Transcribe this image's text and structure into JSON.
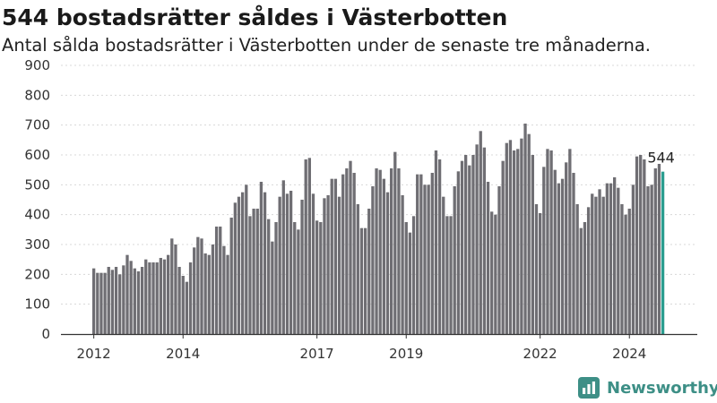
{
  "title": "544 bostadsrätter såldes i Västerbotten",
  "subtitle": "Antal sålda bostadsrätter i Västerbotten under de senaste tre månaderna.",
  "brand": {
    "name": "Newsworthy",
    "icon": "newsworthy-logo-icon"
  },
  "colors": {
    "bar": "#6f6e73",
    "highlight": "#2a9d8f",
    "axis": "#333333",
    "grid": "#d8d8d8",
    "brand": "#3d8f86"
  },
  "chart_data": {
    "type": "bar",
    "ylim": [
      0,
      900
    ],
    "yticks": [
      0,
      100,
      200,
      300,
      400,
      500,
      600,
      700,
      800,
      900
    ],
    "xticks": [
      {
        "label": "2012",
        "index": 0
      },
      {
        "label": "2014",
        "index": 24
      },
      {
        "label": "2017",
        "index": 60
      },
      {
        "label": "2019",
        "index": 84
      },
      {
        "label": "2022",
        "index": 120
      },
      {
        "label": "2024",
        "index": 144
      }
    ],
    "start": "2012-01",
    "values": [
      220,
      205,
      205,
      205,
      225,
      215,
      225,
      200,
      230,
      265,
      245,
      220,
      210,
      225,
      250,
      240,
      240,
      240,
      255,
      250,
      265,
      320,
      300,
      225,
      195,
      175,
      240,
      290,
      325,
      320,
      270,
      265,
      300,
      360,
      360,
      295,
      265,
      390,
      440,
      460,
      475,
      500,
      395,
      420,
      420,
      510,
      475,
      385,
      310,
      375,
      460,
      515,
      470,
      480,
      375,
      350,
      450,
      585,
      590,
      470,
      380,
      375,
      455,
      465,
      520,
      520,
      460,
      535,
      555,
      580,
      540,
      435,
      355,
      355,
      420,
      495,
      555,
      550,
      520,
      475,
      555,
      610,
      555,
      465,
      375,
      340,
      395,
      535,
      535,
      500,
      500,
      540,
      615,
      585,
      460,
      395,
      395,
      495,
      545,
      580,
      600,
      565,
      600,
      635,
      680,
      625,
      510,
      410,
      400,
      495,
      580,
      640,
      650,
      615,
      620,
      655,
      705,
      670,
      600,
      435,
      405,
      560,
      620,
      615,
      550,
      505,
      520,
      575,
      620,
      540,
      435,
      355,
      375,
      425,
      470,
      460,
      485,
      460,
      505,
      505,
      525,
      490,
      435,
      400,
      420,
      500,
      595,
      600,
      585,
      495,
      500,
      555,
      570,
      544
    ],
    "highlight": {
      "index": 153,
      "label": "544"
    }
  }
}
